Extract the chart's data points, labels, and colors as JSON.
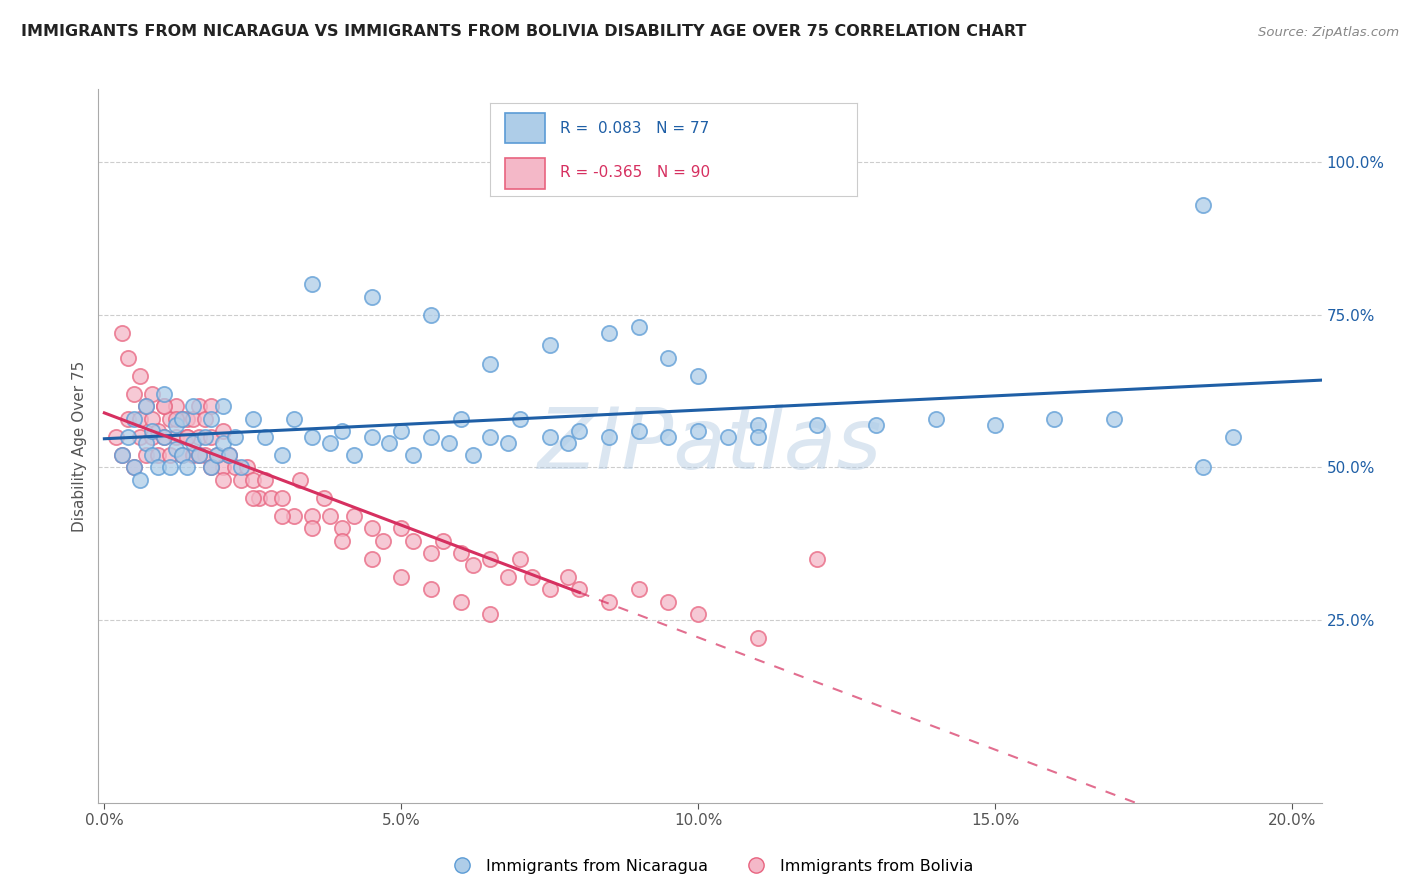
{
  "title": "IMMIGRANTS FROM NICARAGUA VS IMMIGRANTS FROM BOLIVIA DISABILITY AGE OVER 75 CORRELATION CHART",
  "source": "Source: ZipAtlas.com",
  "ylabel": "Disability Age Over 75",
  "xlim": [
    -0.001,
    0.205
  ],
  "ylim": [
    -0.05,
    1.12
  ],
  "xtick_labels": [
    "0.0%",
    "",
    "5.0%",
    "",
    "10.0%",
    "",
    "15.0%",
    "",
    "20.0%"
  ],
  "xtick_vals": [
    0.0,
    0.025,
    0.05,
    0.075,
    0.1,
    0.125,
    0.15,
    0.175,
    0.2
  ],
  "ytick_labels_right": [
    "100.0%",
    "75.0%",
    "50.0%",
    "25.0%"
  ],
  "ytick_vals_right": [
    1.0,
    0.75,
    0.5,
    0.25
  ],
  "color_nicaragua_face": "#aecde8",
  "color_nicaragua_edge": "#5b9bd5",
  "color_bolivia_face": "#f4b8c8",
  "color_bolivia_edge": "#e8637f",
  "trend_color_nicaragua": "#1f5fa6",
  "trend_color_bolivia": "#d63060",
  "legend_line1": "R =  0.083   N = 77",
  "legend_line2": "R = -0.365   N = 90",
  "watermark": "ZIPatlas",
  "background_color": "#ffffff",
  "grid_color": "#c8c8c8",
  "nicaragua_x": [
    0.003,
    0.004,
    0.005,
    0.005,
    0.006,
    0.007,
    0.007,
    0.008,
    0.008,
    0.009,
    0.01,
    0.01,
    0.011,
    0.012,
    0.012,
    0.013,
    0.013,
    0.014,
    0.015,
    0.015,
    0.016,
    0.017,
    0.018,
    0.018,
    0.019,
    0.02,
    0.02,
    0.021,
    0.022,
    0.023,
    0.025,
    0.027,
    0.03,
    0.032,
    0.035,
    0.038,
    0.04,
    0.042,
    0.045,
    0.048,
    0.05,
    0.052,
    0.055,
    0.058,
    0.06,
    0.062,
    0.065,
    0.068,
    0.07,
    0.075,
    0.078,
    0.08,
    0.085,
    0.09,
    0.095,
    0.1,
    0.105,
    0.11,
    0.12,
    0.13,
    0.14,
    0.15,
    0.16,
    0.17,
    0.055,
    0.045,
    0.035,
    0.065,
    0.075,
    0.085,
    0.09,
    0.095,
    0.1,
    0.11,
    0.185,
    0.185,
    0.19
  ],
  "nicaragua_y": [
    0.52,
    0.55,
    0.5,
    0.58,
    0.48,
    0.54,
    0.6,
    0.52,
    0.56,
    0.5,
    0.55,
    0.62,
    0.5,
    0.53,
    0.57,
    0.52,
    0.58,
    0.5,
    0.54,
    0.6,
    0.52,
    0.55,
    0.5,
    0.58,
    0.52,
    0.54,
    0.6,
    0.52,
    0.55,
    0.5,
    0.58,
    0.55,
    0.52,
    0.58,
    0.55,
    0.54,
    0.56,
    0.52,
    0.55,
    0.54,
    0.56,
    0.52,
    0.55,
    0.54,
    0.58,
    0.52,
    0.55,
    0.54,
    0.58,
    0.55,
    0.54,
    0.56,
    0.55,
    0.56,
    0.55,
    0.56,
    0.55,
    0.57,
    0.57,
    0.57,
    0.58,
    0.57,
    0.58,
    0.58,
    0.75,
    0.78,
    0.8,
    0.67,
    0.7,
    0.72,
    0.73,
    0.68,
    0.65,
    0.55,
    0.93,
    0.5,
    0.55
  ],
  "bolivia_x": [
    0.002,
    0.003,
    0.004,
    0.005,
    0.005,
    0.006,
    0.006,
    0.007,
    0.007,
    0.008,
    0.008,
    0.009,
    0.009,
    0.01,
    0.01,
    0.011,
    0.011,
    0.012,
    0.012,
    0.013,
    0.013,
    0.014,
    0.014,
    0.015,
    0.015,
    0.016,
    0.016,
    0.017,
    0.017,
    0.018,
    0.018,
    0.019,
    0.02,
    0.02,
    0.021,
    0.022,
    0.023,
    0.024,
    0.025,
    0.026,
    0.027,
    0.028,
    0.03,
    0.032,
    0.033,
    0.035,
    0.037,
    0.038,
    0.04,
    0.042,
    0.045,
    0.047,
    0.05,
    0.052,
    0.055,
    0.057,
    0.06,
    0.062,
    0.065,
    0.068,
    0.07,
    0.072,
    0.075,
    0.078,
    0.08,
    0.085,
    0.09,
    0.095,
    0.1,
    0.11,
    0.003,
    0.004,
    0.006,
    0.008,
    0.01,
    0.012,
    0.014,
    0.016,
    0.018,
    0.02,
    0.025,
    0.03,
    0.035,
    0.04,
    0.045,
    0.05,
    0.055,
    0.06,
    0.065,
    0.12
  ],
  "bolivia_y": [
    0.55,
    0.52,
    0.58,
    0.5,
    0.62,
    0.55,
    0.58,
    0.52,
    0.6,
    0.55,
    0.58,
    0.52,
    0.56,
    0.55,
    0.6,
    0.52,
    0.58,
    0.55,
    0.6,
    0.52,
    0.58,
    0.55,
    0.58,
    0.52,
    0.58,
    0.55,
    0.6,
    0.52,
    0.58,
    0.55,
    0.6,
    0.52,
    0.5,
    0.56,
    0.52,
    0.5,
    0.48,
    0.5,
    0.48,
    0.45,
    0.48,
    0.45,
    0.45,
    0.42,
    0.48,
    0.42,
    0.45,
    0.42,
    0.4,
    0.42,
    0.4,
    0.38,
    0.4,
    0.38,
    0.36,
    0.38,
    0.36,
    0.34,
    0.35,
    0.32,
    0.35,
    0.32,
    0.3,
    0.32,
    0.3,
    0.28,
    0.3,
    0.28,
    0.26,
    0.22,
    0.72,
    0.68,
    0.65,
    0.62,
    0.6,
    0.58,
    0.55,
    0.52,
    0.5,
    0.48,
    0.45,
    0.42,
    0.4,
    0.38,
    0.35,
    0.32,
    0.3,
    0.28,
    0.26,
    0.35
  ],
  "solid_trend_xmax_bolivia": 0.08,
  "dashed_trend_xmin_bolivia": 0.08
}
